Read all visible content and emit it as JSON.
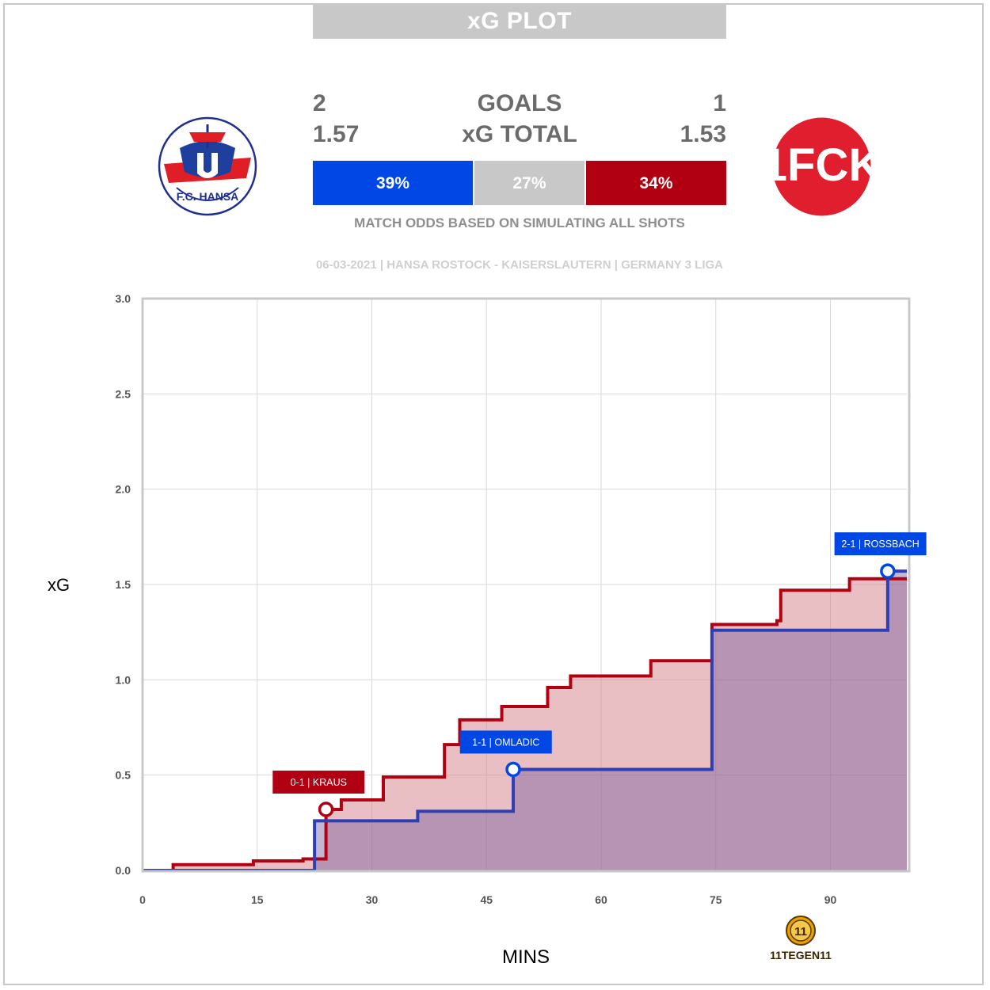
{
  "title": "xG PLOT",
  "home": {
    "goals": "2",
    "xg_total": "1.57",
    "color": "#0047e6"
  },
  "away": {
    "goals": "1",
    "xg_total": "1.53",
    "color": "#b00012"
  },
  "labels": {
    "goals": "GOALS",
    "xg_total": "xG TOTAL"
  },
  "odds": {
    "home": "39%",
    "draw": "27%",
    "away": "34%",
    "home_value": 39,
    "draw_value": 27,
    "away_value": 34,
    "draw_color": "#c8c8c8",
    "caption": "MATCH ODDS BASED ON SIMULATING ALL SHOTS"
  },
  "match_info": "06-03-2021 | HANSA ROSTOCK - KAISERSLAUTERN | GERMANY 3 LIGA",
  "home_logo": {
    "icon": "fc-hansa-rostock-crest",
    "text": "F.C. HANSA"
  },
  "away_logo": {
    "icon": "fck-kaiserslautern-crest",
    "text": "1FCK"
  },
  "brand_logo": {
    "icon": "11tegen11-logo",
    "text": "11TEGEN11"
  },
  "chart_data": {
    "type": "line",
    "xlabel": "MINS",
    "ylabel": "xG",
    "xlim": [
      0,
      100
    ],
    "ylim": [
      0,
      3
    ],
    "x_ticks": [
      0,
      15,
      30,
      45,
      60,
      75,
      90
    ],
    "y_ticks": [
      "0.0",
      "0.5",
      "1.0",
      "1.5",
      "2.0",
      "2.5",
      "3.0"
    ],
    "grid": true,
    "series": [
      {
        "team": "away",
        "color": "#b00012",
        "fill": "rgba(214,128,135,0.5)",
        "x": [
          0,
          4,
          14.5,
          21,
          24,
          26,
          31.5,
          39.5,
          41.5,
          47,
          53,
          56,
          66.5,
          74.5,
          83,
          83.5,
          92.5,
          100
        ],
        "y": [
          0,
          0.03,
          0.05,
          0.06,
          0.32,
          0.37,
          0.49,
          0.66,
          0.79,
          0.86,
          0.96,
          1.02,
          1.1,
          1.29,
          1.31,
          1.47,
          1.53,
          1.53
        ]
      },
      {
        "team": "home",
        "color": "#2e3fb3",
        "fill": "rgba(122,96,160,0.45)",
        "x": [
          0,
          22.5,
          36,
          48.5,
          74.5,
          97.5,
          100
        ],
        "y": [
          0,
          0.26,
          0.31,
          0.53,
          1.26,
          1.57,
          1.57
        ]
      }
    ],
    "goals": [
      {
        "minute": 24,
        "xg": 0.32,
        "team": "away",
        "label": "0-1 | KRAUS"
      },
      {
        "minute": 48.5,
        "xg": 0.53,
        "team": "home",
        "label": "1-1 | OMLADIC"
      },
      {
        "minute": 97.5,
        "xg": 1.57,
        "team": "home",
        "label": "2-1 | ROSSBACH"
      }
    ]
  }
}
